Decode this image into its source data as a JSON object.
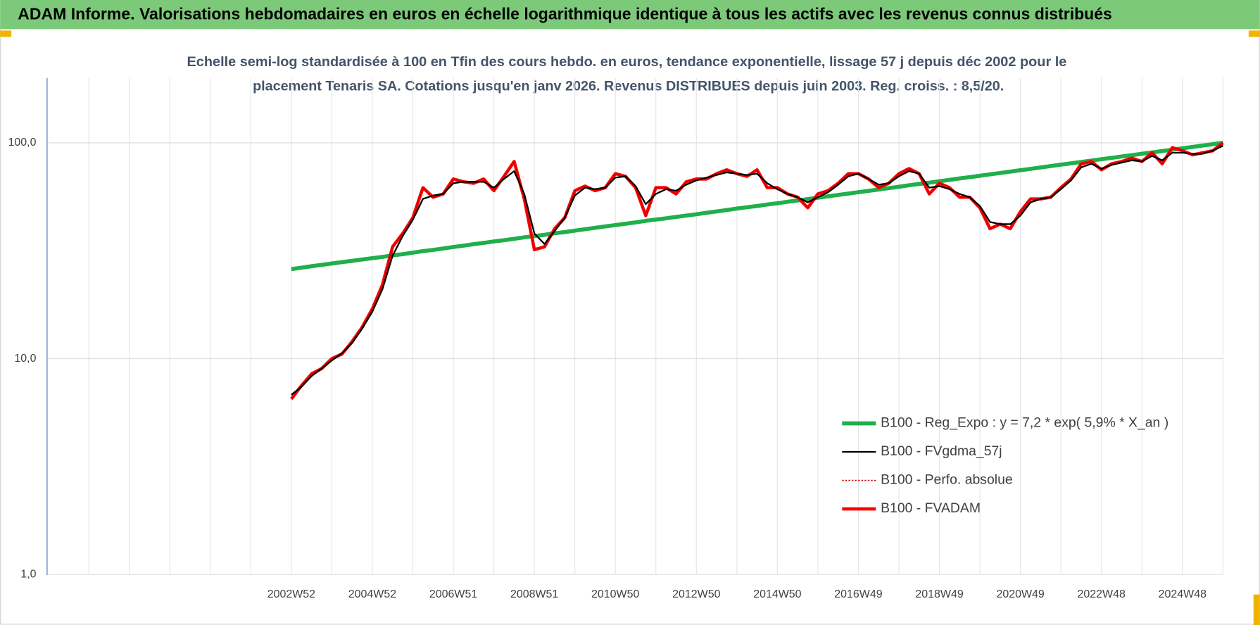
{
  "chart_data": {
    "type": "line",
    "title": "ADAM Informe. Valorisations hebdomadaires en euros en échelle logarithmique identique à tous les actifs avec les revenus connus distribués",
    "subtitle": [
      "Echelle semi-log standardisée à 100 en Tfin des cours hebdo. en euros, tendance exponentielle, lissage 57 j depuis déc 2002 pour le",
      "placement Tenaris SA. Cotations jusqu'en janv 2026. Revenus DISTRIBUES depuis juin 2003. Reg. croiss. : 8,5/20."
    ],
    "log_scale": true,
    "grid": true,
    "legend": "lower right",
    "ylim": [
      1,
      200
    ],
    "yticks": [
      {
        "value": 1,
        "label": "1,0"
      },
      {
        "value": 10,
        "label": "10,0"
      },
      {
        "value": 100,
        "label": "100,0"
      }
    ],
    "categories": [
      null,
      null,
      null,
      null,
      null,
      null,
      null,
      null,
      null,
      null,
      null,
      null,
      null,
      null,
      null,
      null,
      null,
      null,
      null,
      null,
      null,
      null,
      null,
      null,
      "2002W52",
      null,
      null,
      null,
      null,
      null,
      null,
      null,
      "2004W52",
      null,
      null,
      null,
      null,
      null,
      null,
      null,
      "2006W51",
      null,
      null,
      null,
      null,
      null,
      null,
      null,
      "2008W51",
      null,
      null,
      null,
      null,
      null,
      null,
      null,
      "2010W50",
      null,
      null,
      null,
      null,
      null,
      null,
      null,
      "2012W50",
      null,
      null,
      null,
      null,
      null,
      null,
      null,
      "2014W50",
      null,
      null,
      null,
      null,
      null,
      null,
      null,
      "2016W49",
      null,
      null,
      null,
      null,
      null,
      null,
      null,
      "2018W49",
      null,
      null,
      null,
      null,
      null,
      null,
      null,
      "2020W49",
      null,
      null,
      null,
      null,
      null,
      null,
      null,
      "2022W48",
      null,
      null,
      null,
      null,
      null,
      null,
      null,
      "2024W48",
      null,
      null,
      null,
      null
    ],
    "series": [
      {
        "name": "B100 - Reg_Expo : y = 7,2 * exp( 5,9% *  X_an )",
        "color": "#1faf4b",
        "dash": false,
        "values": [
          null,
          null,
          null,
          null,
          null,
          null,
          null,
          null,
          null,
          null,
          null,
          null,
          null,
          null,
          null,
          null,
          null,
          null,
          null,
          null,
          null,
          null,
          null,
          null,
          26.0,
          26.4,
          26.8,
          27.2,
          27.6,
          28.0,
          28.4,
          28.8,
          29.2,
          29.6,
          30.1,
          30.5,
          31.0,
          31.5,
          31.9,
          32.4,
          32.9,
          33.4,
          33.9,
          34.4,
          34.9,
          35.4,
          35.9,
          36.5,
          37.0,
          37.5,
          38.1,
          38.6,
          39.2,
          39.8,
          40.4,
          41.0,
          41.6,
          42.2,
          42.8,
          43.5,
          44.1,
          44.7,
          45.4,
          46.0,
          46.7,
          47.4,
          48.1,
          48.8,
          49.6,
          50.3,
          51.0,
          51.8,
          52.5,
          53.3,
          54.1,
          54.9,
          55.7,
          56.5,
          57.4,
          58.2,
          59.1,
          59.9,
          60.8,
          61.7,
          62.6,
          63.6,
          64.5,
          65.4,
          66.4,
          67.4,
          68.4,
          69.4,
          70.4,
          71.5,
          72.5,
          73.6,
          74.7,
          75.8,
          76.9,
          78.1,
          79.2,
          80.4,
          81.6,
          82.8,
          84.0,
          85.2,
          86.5,
          87.7,
          89.0,
          90.3,
          91.7,
          93.0,
          94.4,
          95.8,
          97.2,
          98.6,
          100.1
        ]
      },
      {
        "name": "B100 - FVgdma_57j",
        "color": "#000000",
        "dash": false,
        "values": [
          null,
          null,
          null,
          null,
          null,
          null,
          null,
          null,
          null,
          null,
          null,
          null,
          null,
          null,
          null,
          null,
          null,
          null,
          null,
          null,
          null,
          null,
          null,
          null,
          6.8,
          7.4,
          8.3,
          9,
          9.8,
          10.6,
          11.8,
          13.8,
          16.5,
          21,
          30,
          37,
          44,
          55,
          57,
          58,
          65,
          66,
          66,
          66,
          62,
          68,
          74,
          58,
          38,
          34,
          39,
          45,
          57,
          62,
          61,
          62,
          69,
          70,
          63,
          52,
          58,
          61,
          60,
          64,
          67,
          69,
          71,
          73,
          72,
          71,
          72,
          65,
          61,
          58,
          56,
          53,
          56,
          59,
          64,
          70,
          72,
          68,
          64,
          65,
          70,
          74,
          72,
          62,
          63,
          61,
          58,
          56,
          51,
          43,
          42,
          42,
          46,
          53,
          55,
          56,
          61,
          67,
          77,
          80,
          76,
          79,
          81,
          83,
          82,
          87,
          83,
          90,
          90,
          89,
          89,
          92,
          97
        ]
      },
      {
        "name": "B100 - Perfo. absolue",
        "color": "#c00000",
        "dash": true,
        "values": [
          null,
          null,
          null,
          null,
          null,
          null,
          null,
          null,
          null,
          null,
          null,
          null,
          null,
          null,
          null,
          null,
          null,
          null,
          null,
          null,
          null,
          null,
          null,
          null,
          6.5,
          7.5,
          8.5,
          9,
          10,
          10.5,
          12,
          14,
          17,
          22,
          33,
          38,
          45,
          62,
          56,
          58,
          68,
          66,
          65,
          68,
          60,
          70,
          82,
          55,
          32,
          33,
          40,
          45,
          60,
          63,
          60,
          62,
          72,
          70,
          62,
          46,
          62,
          62,
          58,
          66,
          68,
          68,
          72,
          75,
          72,
          70,
          75,
          62,
          62,
          58,
          56,
          50,
          58,
          60,
          65,
          72,
          72,
          68,
          62,
          65,
          72,
          76,
          72,
          58,
          65,
          62,
          56,
          56,
          50,
          40,
          42,
          40,
          48,
          55,
          55,
          56,
          62,
          68,
          80,
          82,
          75,
          80,
          82,
          85,
          82,
          90,
          80,
          95,
          92,
          88,
          90,
          92,
          100
        ]
      },
      {
        "name": "B100 - FVADAM",
        "color": "#ff0000",
        "dash": false,
        "values": [
          null,
          null,
          null,
          null,
          null,
          null,
          null,
          null,
          null,
          null,
          null,
          null,
          null,
          null,
          null,
          null,
          null,
          null,
          null,
          null,
          null,
          null,
          null,
          null,
          6.5,
          7.5,
          8.5,
          9,
          10,
          10.5,
          12,
          14,
          17,
          22,
          33,
          38,
          45,
          62,
          56,
          58,
          68,
          66,
          65,
          68,
          60,
          70,
          82,
          55,
          32,
          33,
          40,
          45,
          60,
          63,
          60,
          62,
          72,
          70,
          62,
          46,
          62,
          62,
          58,
          66,
          68,
          68,
          72,
          75,
          72,
          70,
          75,
          62,
          62,
          58,
          56,
          50,
          58,
          60,
          65,
          72,
          72,
          68,
          62,
          65,
          72,
          76,
          72,
          58,
          65,
          62,
          56,
          56,
          50,
          40,
          42,
          40,
          48,
          55,
          55,
          56,
          62,
          68,
          80,
          82,
          75,
          80,
          82,
          85,
          82,
          90,
          80,
          95,
          92,
          88,
          90,
          92,
          100
        ]
      }
    ]
  }
}
